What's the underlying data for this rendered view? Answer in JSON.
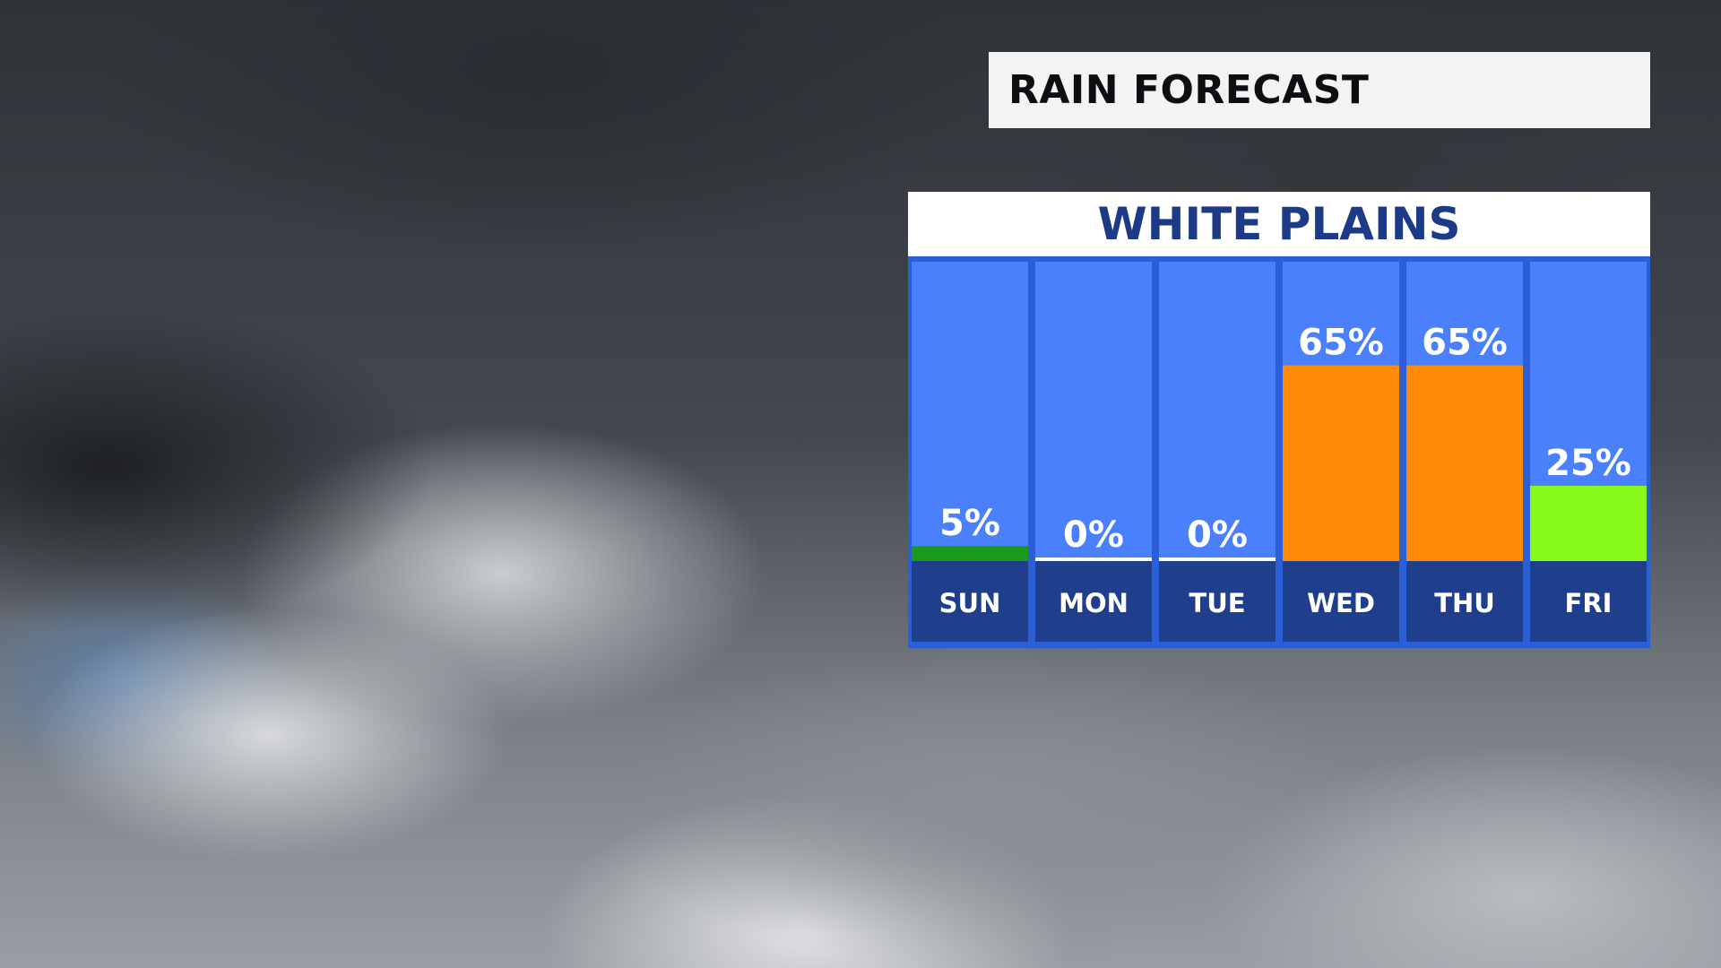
{
  "title": "RAIN FORECAST",
  "location": "WHITE PLAINS",
  "chart_data": {
    "type": "bar",
    "categories": [
      "SUN",
      "MON",
      "TUE",
      "WED",
      "THU",
      "FRI"
    ],
    "values": [
      5,
      0,
      0,
      65,
      65,
      25
    ],
    "value_labels": [
      "5%",
      "0%",
      "0%",
      "65%",
      "65%",
      "25%"
    ],
    "bar_colors": [
      "#1a9a1a",
      "#ffffff",
      "#ffffff",
      "#ff8a0a",
      "#ff8a0a",
      "#86f81a"
    ],
    "unit": "%",
    "ylim": [
      0,
      100
    ],
    "grid": false,
    "legend": "none"
  }
}
